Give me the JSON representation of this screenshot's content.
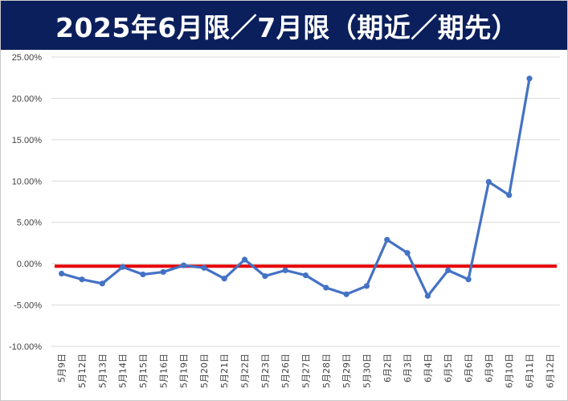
{
  "title": "2025年6月限／7月限（期近／期先）",
  "chart_data": {
    "type": "line",
    "title": "2025年6月限／7月限（期近／期先）",
    "xlabel": "",
    "ylabel": "",
    "categories": [
      "5月9日",
      "5月12日",
      "5月13日",
      "5月14日",
      "5月15日",
      "5月16日",
      "5月19日",
      "5月20日",
      "5月21日",
      "5月22日",
      "5月23日",
      "5月26日",
      "5月27日",
      "5月28日",
      "5月29日",
      "5月30日",
      "6月2日",
      "6月3日",
      "6月4日",
      "6月5日",
      "6月6日",
      "6月9日",
      "6月10日",
      "6月11日",
      "6月12日"
    ],
    "y_ticks": [
      "25.00%",
      "20.00%",
      "15.00%",
      "10.00%",
      "5.00%",
      "0.00%",
      "-5.00%",
      "-10.00%"
    ],
    "ylim": [
      -10,
      25
    ],
    "grid": true,
    "series": [
      {
        "values": [
          -1.2,
          -1.9,
          -2.4,
          -0.4,
          -1.3,
          -1.0,
          -0.2,
          -0.5,
          -1.8,
          0.5,
          -1.5,
          -0.8,
          -1.4,
          -2.9,
          -3.7,
          -2.7,
          2.9,
          1.3,
          -3.9,
          -0.8,
          -1.9,
          9.9,
          8.3,
          22.4,
          null
        ],
        "color": "#4472c4"
      }
    ],
    "reference_line": {
      "value": -0.3,
      "color": "#e60000"
    }
  }
}
